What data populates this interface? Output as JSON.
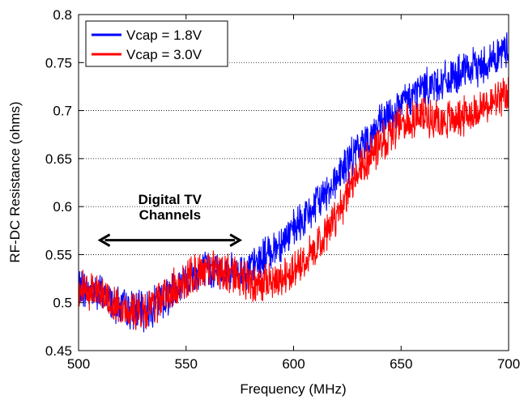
{
  "chart_data": {
    "type": "line",
    "xlabel": "Frequency (MHz)",
    "ylabel": "RF-DC Resistance (ohms)",
    "xlim": [
      500,
      700
    ],
    "ylim": [
      0.45,
      0.8
    ],
    "xticks": [
      "500",
      "550",
      "600",
      "650",
      "700"
    ],
    "yticks": [
      "0.45",
      "0.5",
      "0.55",
      "0.6",
      "0.65",
      "0.7",
      "0.75",
      "0.8"
    ],
    "grid": "horizontal dotted",
    "legend_position": "top-left",
    "series": [
      {
        "name": "Vcap = 1.8V",
        "color": "#0000ff",
        "x": [
          500,
          510,
          520,
          530,
          540,
          550,
          560,
          570,
          580,
          590,
          600,
          610,
          620,
          630,
          640,
          650,
          660,
          670,
          680,
          690,
          700
        ],
        "y": [
          0.515,
          0.51,
          0.495,
          0.49,
          0.505,
          0.525,
          0.535,
          0.53,
          0.535,
          0.555,
          0.575,
          0.6,
          0.63,
          0.66,
          0.685,
          0.705,
          0.725,
          0.73,
          0.74,
          0.75,
          0.765
        ]
      },
      {
        "name": "Vcap = 3.0V",
        "color": "#ff0000",
        "x": [
          500,
          510,
          520,
          530,
          540,
          550,
          560,
          570,
          580,
          590,
          600,
          610,
          620,
          630,
          640,
          650,
          660,
          670,
          680,
          690,
          700
        ],
        "y": [
          0.515,
          0.51,
          0.495,
          0.49,
          0.505,
          0.525,
          0.535,
          0.53,
          0.52,
          0.52,
          0.535,
          0.555,
          0.59,
          0.635,
          0.665,
          0.685,
          0.695,
          0.69,
          0.695,
          0.705,
          0.715
        ]
      }
    ],
    "annotation": {
      "text_line1": "Digital TV",
      "text_line2": "Channels",
      "arrow_x_start": 510,
      "arrow_x_end": 575,
      "arrow_y": 0.565,
      "text_x": 542.5,
      "text_y": 0.6
    }
  }
}
